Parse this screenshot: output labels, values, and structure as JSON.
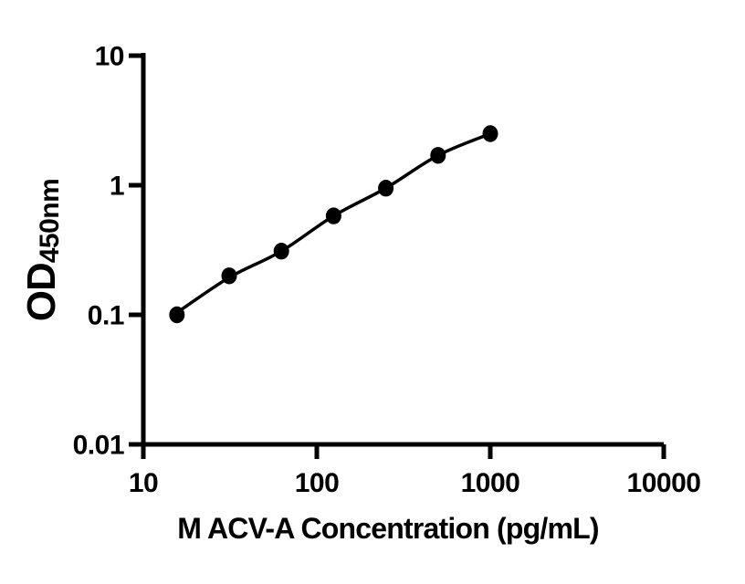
{
  "figure": {
    "background_color": "#ffffff",
    "ink_color": "#000000"
  },
  "chart_data": {
    "type": "scatter",
    "title": "",
    "xlabel": "M ACV-A Concentration (pg/mL)",
    "ylabel_main": "OD",
    "ylabel_sub": "450nm",
    "x_scale": "log10",
    "y_scale": "log10",
    "xlim": [
      10,
      10000
    ],
    "ylim": [
      0.01,
      10
    ],
    "x_ticks": [
      10,
      100,
      1000,
      10000
    ],
    "x_tick_labels": [
      "10",
      "100",
      "1000",
      "10000"
    ],
    "y_ticks": [
      0.01,
      0.1,
      1,
      10
    ],
    "y_tick_labels": [
      "0.01",
      "0.1",
      "1",
      "10"
    ],
    "grid": false,
    "legend": "none",
    "series": [
      {
        "name": "standard-curve",
        "marker": "filled-circle",
        "color": "#000000",
        "points": [
          {
            "x": 15.625,
            "y": 0.1
          },
          {
            "x": 31.25,
            "y": 0.2
          },
          {
            "x": 62.5,
            "y": 0.31
          },
          {
            "x": 125,
            "y": 0.58
          },
          {
            "x": 250,
            "y": 0.95
          },
          {
            "x": 500,
            "y": 1.7
          },
          {
            "x": 1000,
            "y": 2.5
          }
        ],
        "fit_curve_points": [
          {
            "x": 15.625,
            "y": 0.104
          },
          {
            "x": 31.25,
            "y": 0.194
          },
          {
            "x": 62.5,
            "y": 0.31
          },
          {
            "x": 125,
            "y": 0.58
          },
          {
            "x": 250,
            "y": 0.95
          },
          {
            "x": 500,
            "y": 1.7
          },
          {
            "x": 1000,
            "y": 2.5
          }
        ]
      }
    ]
  }
}
